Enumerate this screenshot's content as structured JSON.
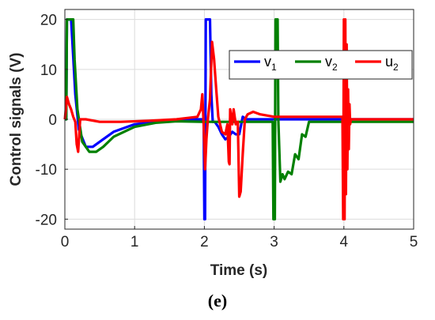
{
  "chart_data": {
    "type": "line",
    "xlabel": "Time (s)",
    "ylabel": "Control signals (V)",
    "xlim": [
      0,
      5
    ],
    "ylim": [
      -22,
      22
    ],
    "xticks": [
      "0",
      "1",
      "2",
      "3",
      "4",
      "5"
    ],
    "yticks": [
      "-20",
      "-10",
      "0",
      "10",
      "20"
    ],
    "grid": true,
    "legend_position": "top-right",
    "panel_label": "(e)",
    "series": [
      {
        "name": "v1",
        "name_base": "v",
        "name_sub": "1",
        "color": "#0000ff",
        "x": [
          0,
          0.02,
          0.03,
          0.09,
          0.11,
          0.15,
          0.2,
          0.3,
          0.4,
          0.5,
          0.7,
          1.0,
          1.3,
          1.6,
          1.9,
          1.99,
          2.0,
          2.01,
          2.02,
          2.03,
          2.08,
          2.1,
          2.12,
          2.15,
          2.2,
          2.25,
          2.3,
          2.35,
          2.4,
          2.45,
          2.5,
          2.55,
          2.6,
          2.7,
          3.0,
          4.0,
          5.0
        ],
        "values": [
          0,
          0,
          20,
          20,
          15,
          5,
          -2,
          -5.5,
          -5.5,
          -4.5,
          -2.5,
          -1,
          -0.5,
          -0.2,
          0,
          0,
          -20,
          -20,
          20,
          20,
          20,
          5,
          -0.5,
          -0.5,
          -1.5,
          -3,
          -4,
          -3.5,
          -2.5,
          -3,
          -3,
          0.5,
          0,
          0,
          0,
          0,
          0
        ]
      },
      {
        "name": "v2",
        "name_base": "v",
        "name_sub": "2",
        "color": "#008000",
        "x": [
          0,
          0.02,
          0.03,
          0.12,
          0.14,
          0.18,
          0.25,
          0.35,
          0.45,
          0.55,
          0.7,
          1.0,
          1.3,
          1.6,
          2.0,
          2.5,
          2.98,
          2.99,
          3.01,
          3.02,
          3.05,
          3.06,
          3.09,
          3.12,
          3.15,
          3.2,
          3.25,
          3.3,
          3.35,
          3.4,
          3.45,
          3.5,
          3.6,
          4.0,
          5.0
        ],
        "values": [
          0,
          0,
          20,
          20,
          12,
          2,
          -4.5,
          -6.5,
          -6.5,
          -5.5,
          -3.5,
          -1.5,
          -0.7,
          -0.4,
          -0.5,
          -0.5,
          -0.5,
          -20,
          -20,
          20,
          20,
          0,
          -12.5,
          -11,
          -12,
          -10.5,
          -11,
          -7,
          -8,
          -3,
          -3.5,
          -0.5,
          -0.5,
          -0.5,
          -0.5
        ]
      },
      {
        "name": "u2",
        "name_base": "u",
        "name_sub": "2",
        "color": "#ff0000",
        "x": [
          0,
          0.03,
          0.06,
          0.09,
          0.12,
          0.15,
          0.17,
          0.19,
          0.22,
          0.3,
          0.5,
          0.8,
          1.2,
          1.6,
          1.9,
          1.95,
          1.97,
          1.99,
          2.01,
          2.03,
          2.05,
          2.08,
          2.11,
          2.14,
          2.17,
          2.2,
          2.25,
          2.3,
          2.33,
          2.35,
          2.36,
          2.37,
          2.4,
          2.42,
          2.45,
          2.48,
          2.5,
          2.52,
          2.55,
          2.58,
          2.62,
          2.7,
          2.8,
          3.0,
          3.5,
          3.98,
          3.99,
          4.0,
          4.01,
          4.02,
          4.03,
          4.04,
          4.05,
          4.06,
          4.07,
          4.08,
          4.09,
          4.1,
          4.2,
          5.0
        ],
        "values": [
          0,
          4.5,
          3,
          2,
          0.5,
          -0.5,
          -5,
          -6.5,
          0,
          0,
          -0.5,
          -0.5,
          -0.3,
          0,
          0.5,
          2,
          5,
          -1,
          -10,
          -4,
          0,
          4,
          15.5,
          12,
          6,
          0.5,
          -2.5,
          -3,
          -1,
          -8.5,
          -9,
          2,
          -1,
          2,
          -1,
          -0.5,
          -15.5,
          -14.5,
          -7,
          0,
          1,
          1.5,
          1,
          0.5,
          0.5,
          0.5,
          -20,
          20,
          -20,
          20,
          -15,
          15,
          -10,
          6,
          -6,
          3,
          -1,
          0,
          0,
          0
        ]
      }
    ]
  }
}
